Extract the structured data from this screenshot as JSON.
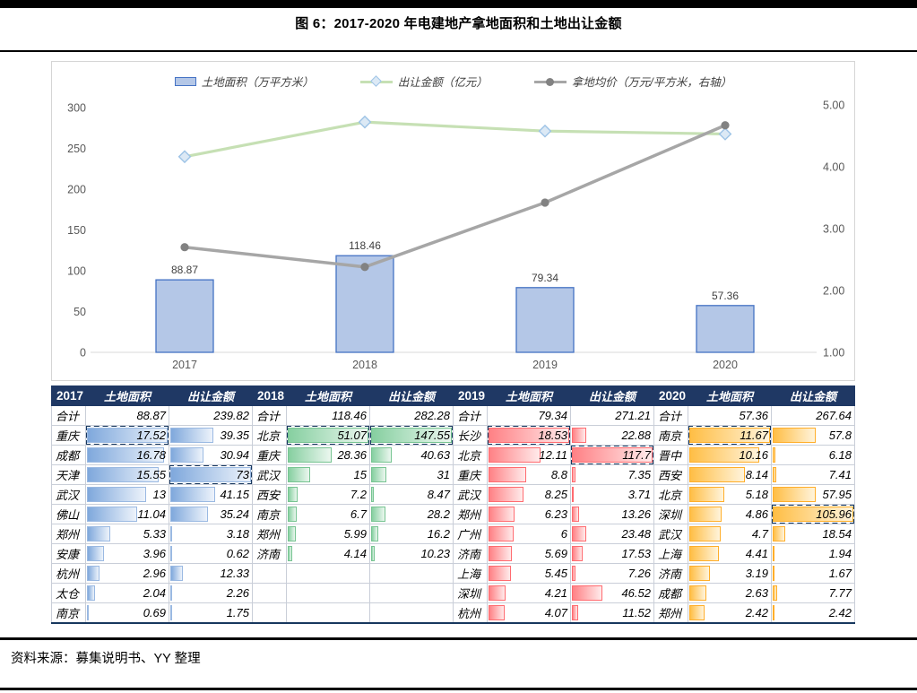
{
  "figure": {
    "title": "图 6：2017-2020 年电建地产拿地面积和土地出让金额",
    "source": "资料来源：募集说明书、YY 整理"
  },
  "legend": [
    {
      "label": "土地面积（万平方米）",
      "swatch": "bar",
      "color": "#B4C7E7",
      "border": "#4472C4"
    },
    {
      "label": "出让金额（亿元）",
      "swatch": "line-diamond",
      "color": "#C6E0B4",
      "marker_fill": "#DCE9F5",
      "marker_border": "#9DC3E6"
    },
    {
      "label": "拿地均价（万元/平方米，右轴）",
      "swatch": "line-circle",
      "color": "#A6A6A6",
      "marker_fill": "#828282"
    }
  ],
  "chart_data": {
    "type": "combo",
    "categories": [
      "2017",
      "2018",
      "2019",
      "2020"
    ],
    "series": [
      {
        "name": "土地面积（万平方米）",
        "type": "bar",
        "axis": "left",
        "values": [
          88.87,
          118.46,
          79.34,
          57.36
        ],
        "labels": [
          "88.87",
          "118.46",
          "79.34",
          "57.36"
        ],
        "fill": "#B4C7E7",
        "stroke": "#4472C4"
      },
      {
        "name": "出让金额（亿元）",
        "type": "line",
        "axis": "left",
        "values": [
          239.82,
          282.28,
          271.21,
          267.64
        ],
        "color": "#C6E0B4",
        "marker": "diamond",
        "marker_fill": "#DCE9F5",
        "marker_border": "#9DC3E6"
      },
      {
        "name": "拿地均价（万元/平方米，右轴）",
        "type": "line",
        "axis": "right",
        "values": [
          2.7,
          2.38,
          3.42,
          4.67
        ],
        "color": "#A6A6A6",
        "marker": "circle",
        "marker_fill": "#828282"
      }
    ],
    "left_axis": {
      "min": 0,
      "max": 300,
      "ticks": [
        "0",
        "50",
        "100",
        "150",
        "200",
        "250",
        "300"
      ]
    },
    "right_axis": {
      "min": 1,
      "max": 5,
      "ticks": [
        "1.00",
        "2.00",
        "3.00",
        "4.00",
        "5.00"
      ]
    },
    "grid": false,
    "legend_position": "top",
    "tick_color": "#595959",
    "label_color": "#404040",
    "axis_line_color": "#D9D9D9"
  },
  "table": {
    "col_headers": [
      "土地面积",
      "出让金额"
    ],
    "total_label": "合计",
    "highlight_color": "#17375E",
    "groups": [
      {
        "year": "2017",
        "bar_from": "#7FA8DC",
        "bar_to": "#EDF3FB",
        "bar_border": "#9AB9E2",
        "rows": [
          {
            "city": "合计",
            "area": "88.87",
            "amount": "239.82"
          },
          {
            "city": "重庆",
            "area": "17.52",
            "amount": "39.35",
            "hl": [
              "area"
            ]
          },
          {
            "city": "成都",
            "area": "16.78",
            "amount": "30.94"
          },
          {
            "city": "天津",
            "area": "15.55",
            "amount": "73",
            "hl": [
              "amount"
            ]
          },
          {
            "city": "武汉",
            "area": "13",
            "amount": "41.15"
          },
          {
            "city": "佛山",
            "area": "11.04",
            "amount": "35.24"
          },
          {
            "city": "郑州",
            "area": "5.33",
            "amount": "3.18"
          },
          {
            "city": "安康",
            "area": "3.96",
            "amount": "0.62"
          },
          {
            "city": "杭州",
            "area": "2.96",
            "amount": "12.33"
          },
          {
            "city": "太仓",
            "area": "2.04",
            "amount": "2.26"
          },
          {
            "city": "南京",
            "area": "0.69",
            "amount": "1.75"
          }
        ]
      },
      {
        "year": "2018",
        "bar_from": "#86CFA0",
        "bar_to": "#EBF7EF",
        "bar_border": "#77C492",
        "rows": [
          {
            "city": "合计",
            "area": "118.46",
            "amount": "282.28"
          },
          {
            "city": "北京",
            "area": "51.07",
            "amount": "147.55",
            "hl": [
              "area",
              "amount"
            ]
          },
          {
            "city": "重庆",
            "area": "28.36",
            "amount": "40.63"
          },
          {
            "city": "武汉",
            "area": "15",
            "amount": "31"
          },
          {
            "city": "西安",
            "area": "7.2",
            "amount": "8.47"
          },
          {
            "city": "南京",
            "area": "6.7",
            "amount": "28.2"
          },
          {
            "city": "郑州",
            "area": "5.99",
            "amount": "16.2"
          },
          {
            "city": "济南",
            "area": "4.14",
            "amount": "10.23"
          },
          {
            "city": "",
            "area": "",
            "amount": ""
          },
          {
            "city": "",
            "area": "",
            "amount": ""
          },
          {
            "city": "",
            "area": "",
            "amount": ""
          }
        ]
      },
      {
        "year": "2019",
        "bar_from": "#FF8185",
        "bar_to": "#FFEBEB",
        "bar_border": "#FF6B70",
        "rows": [
          {
            "city": "合计",
            "area": "79.34",
            "amount": "271.21"
          },
          {
            "city": "长沙",
            "area": "18.53",
            "amount": "22.88",
            "hl": [
              "area"
            ]
          },
          {
            "city": "北京",
            "area": "12.11",
            "amount": "117.7",
            "hl": [
              "amount"
            ]
          },
          {
            "city": "重庆",
            "area": "8.8",
            "amount": "7.35"
          },
          {
            "city": "武汉",
            "area": "8.25",
            "amount": "3.71"
          },
          {
            "city": "郑州",
            "area": "6.23",
            "amount": "13.26"
          },
          {
            "city": "广州",
            "area": "6",
            "amount": "23.48"
          },
          {
            "city": "济南",
            "area": "5.69",
            "amount": "17.53"
          },
          {
            "city": "上海",
            "area": "5.45",
            "amount": "7.26"
          },
          {
            "city": "深圳",
            "area": "4.21",
            "amount": "46.52"
          },
          {
            "city": "杭州",
            "area": "4.07",
            "amount": "11.52"
          }
        ]
      },
      {
        "year": "2020",
        "bar_from": "#FFBE45",
        "bar_to": "#FFF4DC",
        "bar_border": "#FFAE2A",
        "rows": [
          {
            "city": "合计",
            "area": "57.36",
            "amount": "267.64"
          },
          {
            "city": "南京",
            "area": "11.67",
            "amount": "57.8",
            "hl": [
              "area"
            ]
          },
          {
            "city": "晋中",
            "area": "10.16",
            "amount": "6.18"
          },
          {
            "city": "西安",
            "area": "8.14",
            "amount": "7.41"
          },
          {
            "city": "北京",
            "area": "5.18",
            "amount": "57.95"
          },
          {
            "city": "深圳",
            "area": "4.86",
            "amount": "105.96",
            "hl": [
              "amount"
            ]
          },
          {
            "city": "武汉",
            "area": "4.7",
            "amount": "18.54"
          },
          {
            "city": "上海",
            "area": "4.41",
            "amount": "1.94"
          },
          {
            "city": "济南",
            "area": "3.19",
            "amount": "1.67"
          },
          {
            "city": "成都",
            "area": "2.63",
            "amount": "7.77"
          },
          {
            "city": "郑州",
            "area": "2.42",
            "amount": "2.42"
          }
        ]
      }
    ]
  }
}
